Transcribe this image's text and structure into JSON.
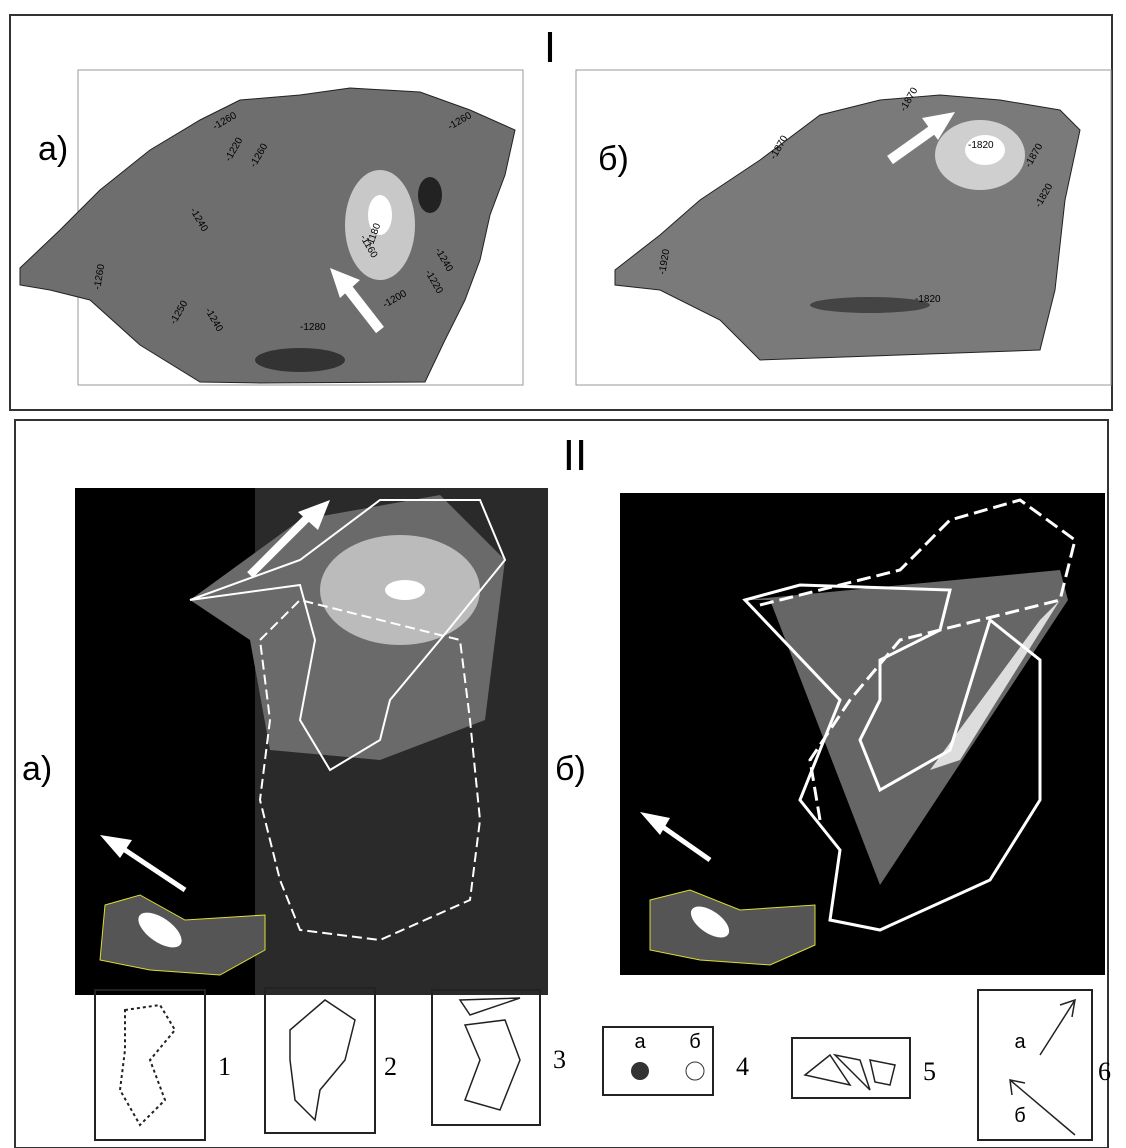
{
  "section_1": {
    "label": "I",
    "panels": [
      {
        "label": "а)",
        "contour_labels": [
          "-1260",
          "-1260",
          "-1220",
          "-1240",
          "-1180",
          "-1160",
          "-1240",
          "-1220",
          "-1260",
          "-1240",
          "-1200",
          "-1280",
          "-1250",
          "-1260"
        ]
      },
      {
        "label": "б)",
        "contour_labels": [
          "-1870",
          "-1870",
          "-1820",
          "-1870",
          "-1820",
          "-1920",
          "-1820"
        ]
      }
    ]
  },
  "section_2": {
    "label": "II",
    "panels": [
      {
        "label": "а)"
      },
      {
        "label": "б)"
      }
    ]
  },
  "legend": [
    {
      "number": "1"
    },
    {
      "number": "2"
    },
    {
      "number": "3"
    },
    {
      "number": "4",
      "sublabels": [
        "а",
        "б"
      ]
    },
    {
      "number": "5"
    },
    {
      "number": "6",
      "sublabels": [
        "а",
        "б"
      ]
    }
  ]
}
